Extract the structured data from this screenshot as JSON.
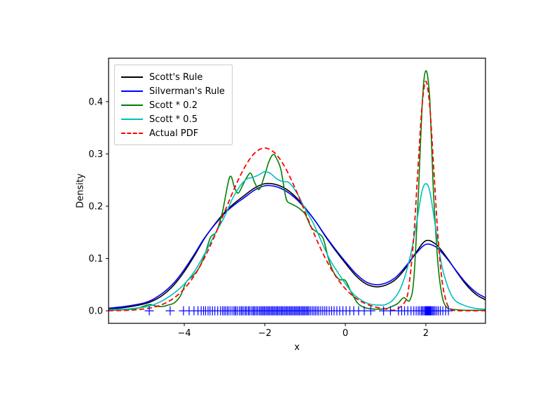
{
  "figure": {
    "background": "#ffffff"
  },
  "chart_data": {
    "type": "line",
    "title": "",
    "xlabel": "x",
    "ylabel": "Density",
    "xlim": [
      -5.88,
      3.48
    ],
    "ylim": [
      -0.024,
      0.483
    ],
    "xticks": [
      -4,
      -2,
      0,
      2
    ],
    "xtick_labels": [
      "−4",
      "−2",
      "0",
      "2"
    ],
    "yticks": [
      0.0,
      0.1,
      0.2,
      0.3,
      0.4
    ],
    "ytick_labels": [
      "0.0",
      "0.1",
      "0.2",
      "0.3",
      "0.4"
    ],
    "grid": false,
    "legend": {
      "position": "upper-left"
    },
    "axes_color": "#000000",
    "series": [
      {
        "name": "Scott's Rule",
        "color": "#000000",
        "style": "solid",
        "width": 1.6,
        "x": [
          -5.88,
          -5.5,
          -5,
          -4.75,
          -4.5,
          -4.25,
          -4,
          -3.75,
          -3.5,
          -3.25,
          -3,
          -2.75,
          -2.5,
          -2.25,
          -2,
          -1.75,
          -1.5,
          -1.25,
          -1,
          -0.75,
          -0.5,
          -0.25,
          0,
          0.25,
          0.5,
          0.75,
          1,
          1.25,
          1.5,
          1.75,
          2,
          2.25,
          2.5,
          2.75,
          3,
          3.25,
          3.48
        ],
        "y": [
          0.004,
          0.006,
          0.013,
          0.02,
          0.032,
          0.05,
          0.075,
          0.105,
          0.138,
          0.165,
          0.188,
          0.206,
          0.221,
          0.235,
          0.243,
          0.242,
          0.234,
          0.219,
          0.197,
          0.172,
          0.143,
          0.116,
          0.091,
          0.068,
          0.052,
          0.046,
          0.049,
          0.06,
          0.082,
          0.111,
          0.134,
          0.127,
          0.104,
          0.076,
          0.05,
          0.031,
          0.021
        ]
      },
      {
        "name": "Silverman's Rule",
        "color": "#0000ff",
        "style": "solid",
        "width": 1.6,
        "x": [
          -5.88,
          -5.5,
          -5,
          -4.75,
          -4.5,
          -4.25,
          -4,
          -3.75,
          -3.5,
          -3.25,
          -3,
          -2.75,
          -2.5,
          -2.25,
          -2,
          -1.75,
          -1.5,
          -1.25,
          -1,
          -0.75,
          -0.5,
          -0.25,
          0,
          0.25,
          0.5,
          0.75,
          1,
          1.25,
          1.5,
          1.75,
          2,
          2.25,
          2.5,
          2.75,
          3,
          3.25,
          3.48
        ],
        "y": [
          0.005,
          0.008,
          0.015,
          0.023,
          0.036,
          0.054,
          0.079,
          0.108,
          0.139,
          0.164,
          0.186,
          0.203,
          0.217,
          0.231,
          0.239,
          0.238,
          0.23,
          0.216,
          0.196,
          0.172,
          0.144,
          0.118,
          0.094,
          0.072,
          0.056,
          0.05,
          0.053,
          0.064,
          0.085,
          0.109,
          0.127,
          0.122,
          0.102,
          0.077,
          0.053,
          0.035,
          0.025
        ]
      },
      {
        "name": "Scott * 0.2",
        "color": "#008000",
        "style": "solid",
        "width": 1.6,
        "x": [
          -5.88,
          -5.5,
          -5.2,
          -5,
          -4.85,
          -4.7,
          -4.55,
          -4.4,
          -4.25,
          -4.1,
          -3.95,
          -3.8,
          -3.65,
          -3.5,
          -3.35,
          -3.2,
          -3.05,
          -2.87,
          -2.75,
          -2.66,
          -2.55,
          -2.45,
          -2.35,
          -2.25,
          -2.14,
          -2.0,
          -1.9,
          -1.79,
          -1.7,
          -1.6,
          -1.5,
          -1.44,
          -1.3,
          -1.15,
          -1.0,
          -0.85,
          -0.7,
          -0.55,
          -0.42,
          -0.3,
          -0.15,
          0,
          0.15,
          0.3,
          0.45,
          0.6,
          0.8,
          1.0,
          1.15,
          1.3,
          1.45,
          1.6,
          1.7,
          1.8,
          1.85,
          1.9,
          1.95,
          2.0,
          2.05,
          2.1,
          2.15,
          2.2,
          2.3,
          2.4,
          2.5,
          2.65,
          3.0,
          3.48
        ],
        "y": [
          0.001,
          0.002,
          0.004,
          0.009,
          0.012,
          0.009,
          0.008,
          0.011,
          0.015,
          0.028,
          0.055,
          0.066,
          0.08,
          0.105,
          0.14,
          0.152,
          0.19,
          0.256,
          0.235,
          0.225,
          0.24,
          0.255,
          0.263,
          0.245,
          0.232,
          0.26,
          0.285,
          0.299,
          0.29,
          0.27,
          0.225,
          0.209,
          0.203,
          0.196,
          0.185,
          0.16,
          0.15,
          0.138,
          0.1,
          0.075,
          0.06,
          0.058,
          0.035,
          0.015,
          0.007,
          0.004,
          0.003,
          0.004,
          0.008,
          0.014,
          0.025,
          0.02,
          0.06,
          0.2,
          0.29,
          0.38,
          0.44,
          0.459,
          0.445,
          0.4,
          0.3,
          0.21,
          0.09,
          0.03,
          0.008,
          0.003,
          0.001,
          0.001
        ]
      },
      {
        "name": "Scott * 0.5",
        "color": "#00bfbf",
        "style": "solid",
        "width": 1.6,
        "x": [
          -5.88,
          -5.5,
          -5,
          -4.75,
          -4.5,
          -4.25,
          -4,
          -3.75,
          -3.5,
          -3.25,
          -3,
          -2.8,
          -2.6,
          -2.45,
          -2.3,
          -2.15,
          -2,
          -1.85,
          -1.7,
          -1.55,
          -1.4,
          -1.2,
          -1,
          -0.8,
          -0.6,
          -0.4,
          -0.2,
          0,
          0.2,
          0.4,
          0.6,
          0.8,
          1,
          1.2,
          1.4,
          1.6,
          1.75,
          1.9,
          2,
          2.1,
          2.25,
          2.4,
          2.55,
          2.7,
          2.9,
          3.2,
          3.48
        ],
        "y": [
          0.002,
          0.003,
          0.007,
          0.012,
          0.021,
          0.034,
          0.051,
          0.075,
          0.108,
          0.145,
          0.18,
          0.215,
          0.24,
          0.252,
          0.255,
          0.26,
          0.266,
          0.262,
          0.252,
          0.247,
          0.245,
          0.225,
          0.195,
          0.168,
          0.134,
          0.1,
          0.075,
          0.052,
          0.032,
          0.02,
          0.013,
          0.011,
          0.012,
          0.022,
          0.048,
          0.1,
          0.16,
          0.227,
          0.243,
          0.227,
          0.155,
          0.085,
          0.045,
          0.022,
          0.012,
          0.005,
          0.003
        ]
      },
      {
        "name": "Actual PDF",
        "color": "#ff0000",
        "style": "dashed",
        "width": 1.8,
        "x": [
          -5.88,
          -5.5,
          -5.25,
          -5,
          -4.75,
          -4.5,
          -4.25,
          -4,
          -3.75,
          -3.5,
          -3.25,
          -3,
          -2.75,
          -2.5,
          -2.25,
          -2,
          -1.75,
          -1.5,
          -1.25,
          -1,
          -0.75,
          -0.5,
          -0.25,
          0,
          0.25,
          0.5,
          0.75,
          1,
          1.25,
          1.5,
          1.6,
          1.7,
          1.8,
          1.9,
          2,
          2.1,
          2.2,
          2.3,
          2.4,
          2.5,
          2.6,
          2.75,
          3,
          3.48
        ],
        "y": [
          0.0002,
          0.0007,
          0.0016,
          0.0035,
          0.0071,
          0.0137,
          0.0248,
          0.0421,
          0.0673,
          0.101,
          0.1425,
          0.1888,
          0.2349,
          0.2747,
          0.3016,
          0.3112,
          0.3016,
          0.2747,
          0.2349,
          0.1888,
          0.1425,
          0.101,
          0.0673,
          0.0421,
          0.0248,
          0.0137,
          0.0071,
          0.0035,
          0.002,
          0.02,
          0.0599,
          0.1428,
          0.2664,
          0.3875,
          0.439,
          0.3873,
          0.2662,
          0.1425,
          0.0594,
          0.0193,
          0.004,
          0.0003,
          0.0001,
          0.0001
        ]
      }
    ],
    "rug": {
      "color": "#0000ff",
      "marker": "+",
      "y": 0,
      "x": [
        -4.87,
        -4.35,
        -4.02,
        -3.88,
        -3.76,
        -3.66,
        -3.58,
        -3.52,
        -3.47,
        -3.41,
        -3.36,
        -3.3,
        -3.24,
        -3.17,
        -3.1,
        -3.05,
        -3.01,
        -2.97,
        -2.93,
        -2.89,
        -2.84,
        -2.79,
        -2.75,
        -2.72,
        -2.68,
        -2.63,
        -2.59,
        -2.56,
        -2.52,
        -2.48,
        -2.45,
        -2.41,
        -2.38,
        -2.34,
        -2.3,
        -2.27,
        -2.24,
        -2.2,
        -2.17,
        -2.13,
        -2.1,
        -2.07,
        -2.04,
        -2.01,
        -1.98,
        -1.95,
        -1.92,
        -1.89,
        -1.86,
        -1.83,
        -1.8,
        -1.77,
        -1.74,
        -1.71,
        -1.68,
        -1.65,
        -1.62,
        -1.59,
        -1.56,
        -1.53,
        -1.5,
        -1.47,
        -1.44,
        -1.41,
        -1.38,
        -1.35,
        -1.32,
        -1.29,
        -1.26,
        -1.23,
        -1.2,
        -1.17,
        -1.14,
        -1.11,
        -1.08,
        -1.05,
        -1.02,
        -0.99,
        -0.96,
        -0.93,
        -0.9,
        -0.86,
        -0.82,
        -0.78,
        -0.74,
        -0.7,
        -0.66,
        -0.61,
        -0.56,
        -0.51,
        -0.46,
        -0.4,
        -0.34,
        -0.28,
        -0.21,
        -0.14,
        -0.06,
        0.02,
        0.11,
        0.21,
        0.33,
        0.47,
        0.63,
        0.95,
        1.12,
        1.32,
        1.4,
        1.47,
        1.55,
        1.63,
        1.7,
        1.76,
        1.81,
        1.85,
        1.89,
        1.92,
        1.95,
        1.98,
        2.0,
        2.02,
        2.04,
        2.06,
        2.08,
        2.1,
        2.12,
        2.14,
        2.17,
        2.2,
        2.23,
        2.27,
        2.31,
        2.36,
        2.42,
        2.49,
        2.56
      ]
    }
  }
}
